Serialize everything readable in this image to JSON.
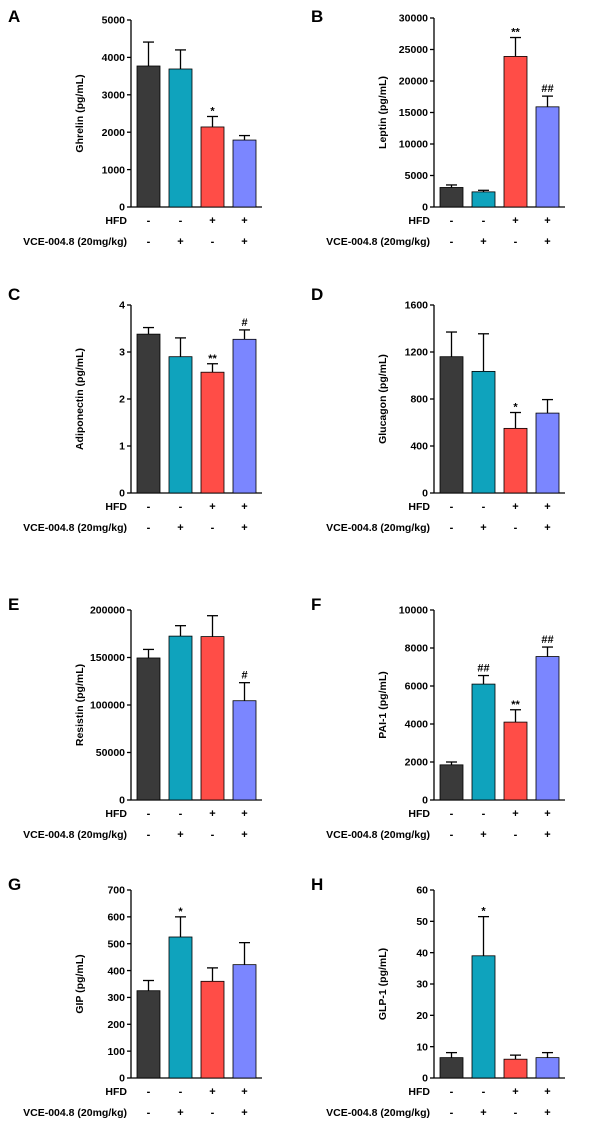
{
  "colors": [
    "#3a3a3a",
    "#0fa3bd",
    "#ff4d47",
    "#7b86ff"
  ],
  "rows": {
    "hfd_label": "HFD",
    "vce_label": "VCE-004.8 (20mg/kg)",
    "hfd": [
      "-",
      "-",
      "+",
      "+"
    ],
    "vce": [
      "-",
      "+",
      "-",
      "+"
    ]
  },
  "chart_data": [
    {
      "panel": "A",
      "type": "bar",
      "ylabel": "Ghrelin (pg/mL)",
      "ylim": [
        0,
        5000
      ],
      "yticks": [
        "0",
        "1000",
        "2000",
        "3000",
        "4000",
        "5000"
      ],
      "values": [
        3770,
        3690,
        2140,
        1790
      ],
      "errors": [
        640,
        510,
        280,
        120
      ],
      "annotations": [
        "",
        "",
        "*",
        ""
      ]
    },
    {
      "panel": "B",
      "type": "bar",
      "ylabel": "Leptin (pg/mL)",
      "ylim": [
        0,
        30000
      ],
      "yticks": [
        "0",
        "5000",
        "10000",
        "15000",
        "20000",
        "25000",
        "30000"
      ],
      "values": [
        3100,
        2400,
        23900,
        15900
      ],
      "errors": [
        400,
        250,
        3000,
        1700
      ],
      "annotations": [
        "",
        "",
        "**",
        "##"
      ]
    },
    {
      "panel": "C",
      "type": "bar",
      "ylabel": "Adiponectin (pg/mL)",
      "ylim": [
        0,
        4
      ],
      "yticks": [
        "0",
        "1",
        "2",
        "3",
        "4"
      ],
      "values": [
        3.38,
        2.9,
        2.57,
        3.27
      ],
      "errors": [
        0.14,
        0.4,
        0.18,
        0.2
      ],
      "annotations": [
        "",
        "",
        "**",
        "#"
      ]
    },
    {
      "panel": "D",
      "type": "bar",
      "ylabel": "Glucagon (pg/mL)",
      "ylim": [
        0,
        1600
      ],
      "yticks": [
        "0",
        "400",
        "800",
        "1200",
        "1600"
      ],
      "values": [
        1160,
        1035,
        550,
        680
      ],
      "errors": [
        210,
        320,
        135,
        115
      ],
      "annotations": [
        "",
        "",
        "*",
        ""
      ]
    },
    {
      "panel": "E",
      "type": "bar",
      "ylabel": "Resistin (pg/mL)",
      "ylim": [
        0,
        200000
      ],
      "yticks": [
        "0",
        "50000",
        "100000",
        "150000",
        "200000"
      ],
      "values": [
        149500,
        172500,
        172000,
        104500
      ],
      "errors": [
        9000,
        11000,
        22000,
        19000
      ],
      "annotations": [
        "",
        "",
        "",
        "#"
      ]
    },
    {
      "panel": "F",
      "type": "bar",
      "ylabel": "PAI-1 (pg/mL)",
      "ylim": [
        0,
        10000
      ],
      "yticks": [
        "0",
        "2000",
        "4000",
        "6000",
        "8000",
        "10000"
      ],
      "values": [
        1850,
        6100,
        4100,
        7550
      ],
      "errors": [
        150,
        450,
        650,
        500
      ],
      "annotations": [
        "",
        "##",
        "**",
        "##"
      ]
    },
    {
      "panel": "G",
      "type": "bar",
      "ylabel": "GIP (pg/mL)",
      "ylim": [
        0,
        700
      ],
      "yticks": [
        "0",
        "100",
        "200",
        "300",
        "400",
        "500",
        "600",
        "700"
      ],
      "values": [
        325,
        525,
        360,
        422
      ],
      "errors": [
        38,
        75,
        50,
        82
      ],
      "annotations": [
        "",
        "*",
        "",
        ""
      ]
    },
    {
      "panel": "H",
      "type": "bar",
      "ylabel": "GLP-1 (pg/mL)",
      "ylim": [
        0,
        60
      ],
      "yticks": [
        "0",
        "10",
        "20",
        "30",
        "40",
        "50",
        "60"
      ],
      "values": [
        6.5,
        39,
        6,
        6.5
      ],
      "errors": [
        1.6,
        12.5,
        1.3,
        1.6
      ],
      "annotations": [
        "",
        "*",
        "",
        ""
      ]
    }
  ]
}
